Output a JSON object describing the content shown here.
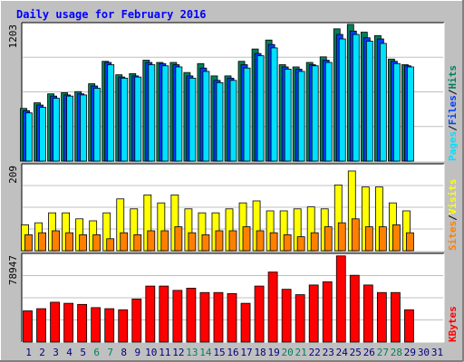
{
  "colors": {
    "background": "#c0c0c0",
    "plot_bg": "#ffffff",
    "grid": "#c0c0c0",
    "title": "#0000ff",
    "hits": "#00805c",
    "files": "#0040ff",
    "pages": "#00e0ff",
    "visits": "#ffff00",
    "sites": "#ff8000",
    "kbytes": "#ff0000",
    "weekend_label": "#00805c",
    "day_label": "#000080",
    "slash": "#000000"
  },
  "chart_data": {
    "type": "bar",
    "title": "Daily usage for February 2016",
    "categories": [
      "1",
      "2",
      "3",
      "4",
      "5",
      "6",
      "7",
      "8",
      "9",
      "10",
      "11",
      "12",
      "13",
      "14",
      "15",
      "16",
      "17",
      "18",
      "19",
      "20",
      "21",
      "22",
      "23",
      "24",
      "25",
      "26",
      "27",
      "28",
      "29",
      "30",
      "31"
    ],
    "weekend_days": [
      "6",
      "7",
      "13",
      "14",
      "20",
      "21",
      "27",
      "28"
    ],
    "panels": [
      {
        "id": "top",
        "max_label": "1203",
        "ylim": [
          0,
          1203
        ],
        "legend": [
          "Pages",
          "/",
          "Files",
          "/",
          "Hits"
        ],
        "series": [
          {
            "name": "Hits",
            "values": [
              470,
              520,
              600,
              610,
              620,
              690,
              890,
              770,
              780,
              900,
              880,
              880,
              790,
              870,
              760,
              760,
              890,
              1000,
              1080,
              860,
              840,
              880,
              930,
              1180,
              1220,
              1150,
              1120,
              910,
              860,
              0,
              0
            ]
          },
          {
            "name": "Files",
            "values": [
              450,
              500,
              580,
              590,
              600,
              670,
              880,
              750,
              760,
              880,
              870,
              860,
              760,
              830,
              720,
              740,
              860,
              960,
              1040,
              840,
              820,
              860,
              900,
              1130,
              1160,
              1100,
              1090,
              890,
              850,
              0,
              0
            ]
          },
          {
            "name": "Pages",
            "values": [
              430,
              480,
              560,
              580,
              590,
              650,
              860,
              740,
              750,
              860,
              850,
              840,
              740,
              800,
              700,
              720,
              830,
              940,
              1010,
              820,
              800,
              850,
              880,
              1090,
              1130,
              1070,
              1050,
              870,
              840,
              0,
              0
            ]
          }
        ]
      },
      {
        "id": "middle",
        "max_label": "209",
        "ylim": [
          0,
          209
        ],
        "legend": [
          "Sites",
          "/",
          "Visits"
        ],
        "series": [
          {
            "name": "Visits",
            "values": [
              65,
              70,
              95,
              95,
              80,
              75,
              95,
              130,
              105,
              140,
              120,
              140,
              105,
              95,
              95,
              105,
              120,
              125,
              100,
              100,
              105,
              110,
              105,
              165,
              200,
              160,
              160,
              120,
              100,
              0,
              0
            ]
          },
          {
            "name": "Sites",
            "values": [
              40,
              45,
              50,
              45,
              40,
              40,
              30,
              45,
              40,
              50,
              50,
              60,
              45,
              40,
              50,
              50,
              60,
              50,
              45,
              40,
              35,
              45,
              60,
              70,
              80,
              60,
              60,
              65,
              45,
              0,
              0
            ]
          }
        ]
      },
      {
        "id": "bottom",
        "max_label": "78947",
        "ylim": [
          0,
          78947
        ],
        "legend": [
          "KBytes"
        ],
        "series": [
          {
            "name": "KBytes",
            "values": [
              29000,
              31000,
              37000,
              36000,
              35000,
              32000,
              31000,
              30000,
              40000,
              52000,
              52000,
              48000,
              50000,
              46000,
              46000,
              45000,
              36000,
              52000,
              65000,
              49000,
              44000,
              53000,
              56000,
              80000,
              62000,
              53000,
              46000,
              46000,
              30000,
              0,
              0
            ]
          }
        ]
      }
    ]
  }
}
